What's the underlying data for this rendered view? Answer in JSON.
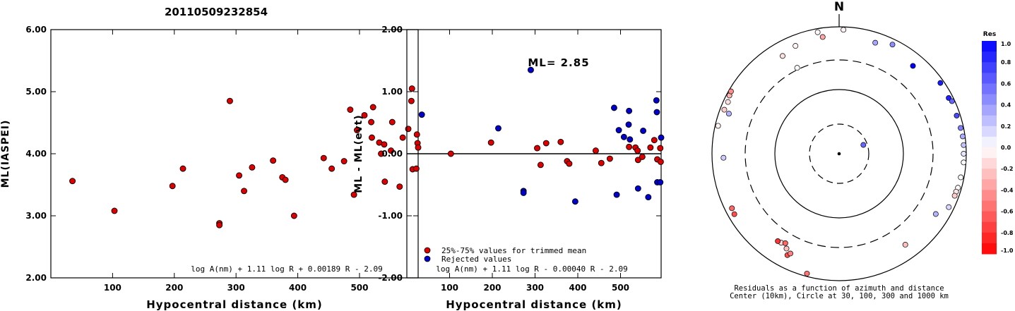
{
  "title": "20110509232854",
  "chart_data": [
    {
      "type": "scatter",
      "id": "ml",
      "xlabel": "Hypocentral distance (km)",
      "ylabel": "ML(IASPEI)",
      "xlim": [
        0,
        595
      ],
      "ylim": [
        2.0,
        6.0
      ],
      "xticks": [
        "100",
        "200",
        "300",
        "400",
        "500"
      ],
      "yticks": [
        "2.00",
        "3.00",
        "4.00",
        "5.00",
        "6.00"
      ],
      "formula": "log A(nm) + 1.11 log R + 0.00189 R - 2.09",
      "series": [
        {
          "color": "#dd0000",
          "points": [
            [
              35,
              3.56
            ],
            [
              103,
              3.08
            ],
            [
              197,
              3.48
            ],
            [
              214,
              3.76
            ],
            [
              273,
              2.88
            ],
            [
              273,
              2.85
            ],
            [
              290,
              4.85
            ],
            [
              305,
              3.65
            ],
            [
              313,
              3.4
            ],
            [
              326,
              3.78
            ],
            [
              360,
              3.89
            ],
            [
              375,
              3.62
            ],
            [
              380,
              3.58
            ],
            [
              394,
              3.0
            ],
            [
              442,
              3.93
            ],
            [
              455,
              3.76
            ],
            [
              475,
              3.88
            ],
            [
              485,
              4.71
            ],
            [
              491,
              3.34
            ],
            [
              496,
              4.38
            ],
            [
              508,
              4.62
            ],
            [
              519,
              4.51
            ],
            [
              520,
              4.26
            ],
            [
              522,
              4.75
            ],
            [
              532,
              4.18
            ],
            [
              535,
              4.0
            ],
            [
              540,
              4.15
            ],
            [
              541,
              3.55
            ],
            [
              551,
              4.05
            ],
            [
              553,
              4.51
            ],
            [
              565,
              3.47
            ],
            [
              570,
              4.26
            ],
            [
              579,
              4.4
            ],
            [
              584,
              4.85
            ],
            [
              585,
              5.05
            ],
            [
              586,
              3.75
            ],
            [
              592,
              3.76
            ],
            [
              593,
              4.31
            ],
            [
              594,
              4.17
            ],
            [
              595,
              4.1
            ]
          ]
        }
      ]
    },
    {
      "type": "scatter",
      "id": "residual",
      "xlabel": "Hypocentral distance (km)",
      "ylabel": "ML - ML(evt)",
      "xlim": [
        0,
        595
      ],
      "ylim": [
        -2.0,
        2.0
      ],
      "xticks": [
        "100",
        "200",
        "300",
        "400",
        "500"
      ],
      "yticks": [
        "-2.00",
        "-1.00",
        "0.00",
        "1.00",
        "2.00"
      ],
      "ml_label": "ML= 2.85",
      "formula": "log A(nm) + 1.11 log R - 0.00040 R - 2.09",
      "legend": [
        "25%-75% values for trimmed mean",
        "Rejected values"
      ],
      "legend_position": "bottom-left",
      "series": [
        {
          "name": "25%-75% values for trimmed mean",
          "color": "#dd0000",
          "points": [
            [
              103,
              0.0
            ],
            [
              197,
              0.18
            ],
            [
              305,
              0.09
            ],
            [
              313,
              -0.18
            ],
            [
              326,
              0.17
            ],
            [
              360,
              0.19
            ],
            [
              375,
              -0.12
            ],
            [
              380,
              -0.16
            ],
            [
              442,
              0.05
            ],
            [
              455,
              -0.15
            ],
            [
              475,
              -0.08
            ],
            [
              520,
              0.11
            ],
            [
              535,
              0.1
            ],
            [
              540,
              0.05
            ],
            [
              541,
              -0.1
            ],
            [
              551,
              -0.05
            ],
            [
              570,
              0.1
            ],
            [
              579,
              0.22
            ],
            [
              586,
              -0.09
            ],
            [
              593,
              0.09
            ],
            [
              594,
              -0.13
            ]
          ]
        },
        {
          "name": "Rejected values",
          "color": "#0000cc",
          "points": [
            [
              35,
              0.63
            ],
            [
              214,
              0.41
            ],
            [
              273,
              -0.6
            ],
            [
              273,
              -0.63
            ],
            [
              290,
              1.35
            ],
            [
              394,
              -0.77
            ],
            [
              485,
              0.74
            ],
            [
              491,
              -0.66
            ],
            [
              496,
              0.38
            ],
            [
              508,
              0.27
            ],
            [
              519,
              0.47
            ],
            [
              520,
              0.69
            ],
            [
              522,
              0.23
            ],
            [
              541,
              -0.56
            ],
            [
              553,
              0.37
            ],
            [
              565,
              -0.7
            ],
            [
              584,
              0.86
            ],
            [
              585,
              0.67
            ],
            [
              586,
              -0.46
            ],
            [
              593,
              -0.46
            ],
            [
              595,
              0.26
            ]
          ]
        }
      ]
    },
    {
      "type": "polar",
      "id": "azimuth",
      "north_label": "N",
      "caption_line1": "Residuals as a function of azimuth and distance",
      "caption_line2": "Center (10km), Circle at 30, 100, 300 and 1000 km",
      "colorbar_title": "Res",
      "colorbar_ticks": [
        "1.0",
        "0.8",
        "0.6",
        "0.4",
        "0.2",
        "0.0",
        "-0.2",
        "-0.4",
        "-0.6",
        "-0.8",
        "-1.0"
      ],
      "stations": [
        {
          "az": 2,
          "dist": 900,
          "res": -0.05
        },
        {
          "az": 350,
          "dist": 880,
          "res": -0.03
        },
        {
          "az": 352,
          "dist": 720,
          "res": -0.35
        },
        {
          "az": 338,
          "dist": 680,
          "res": -0.05
        },
        {
          "az": 330,
          "dist": 600,
          "res": -0.12
        },
        {
          "az": 334,
          "dist": 320,
          "res": 0.02
        },
        {
          "az": 26,
          "dist": 820,
          "res": 0.45
        },
        {
          "az": 18,
          "dist": 690,
          "res": 0.35
        },
        {
          "az": 40,
          "dist": 640,
          "res": 1.0
        },
        {
          "az": 70,
          "dist": 26,
          "res": 0.6
        },
        {
          "az": 55,
          "dist": 880,
          "res": 0.9
        },
        {
          "az": 63,
          "dist": 860,
          "res": 0.88
        },
        {
          "az": 65,
          "dist": 910,
          "res": 0.6
        },
        {
          "az": 72,
          "dist": 880,
          "res": 0.72
        },
        {
          "az": 78,
          "dist": 900,
          "res": 0.5
        },
        {
          "az": 82,
          "dist": 920,
          "res": 0.33
        },
        {
          "az": 86,
          "dist": 920,
          "res": 0.24
        },
        {
          "az": 90,
          "dist": 910,
          "res": 0.1
        },
        {
          "az": 94,
          "dist": 920,
          "res": 0.02
        },
        {
          "az": 101,
          "dist": 890,
          "res": -0.02
        },
        {
          "az": 106,
          "dist": 880,
          "res": -0.02
        },
        {
          "az": 108,
          "dist": 860,
          "res": -0.1
        },
        {
          "az": 110,
          "dist": 860,
          "res": -0.2
        },
        {
          "az": 116,
          "dist": 830,
          "res": 0.15
        },
        {
          "az": 122,
          "dist": 620,
          "res": 0.3
        },
        {
          "az": 144,
          "dist": 590,
          "res": -0.25
        },
        {
          "az": 195,
          "dist": 900,
          "res": -0.55
        },
        {
          "az": 207,
          "dist": 620,
          "res": -0.7
        },
        {
          "az": 206,
          "dist": 560,
          "res": -0.5
        },
        {
          "az": 209,
          "dist": 510,
          "res": -0.25
        },
        {
          "az": 213,
          "dist": 470,
          "res": -0.15
        },
        {
          "az": 215,
          "dist": 480,
          "res": -0.8
        },
        {
          "az": 211,
          "dist": 440,
          "res": -0.6
        },
        {
          "az": 240,
          "dist": 800,
          "res": -0.7
        },
        {
          "az": 243,
          "dist": 780,
          "res": -0.6
        },
        {
          "az": 268,
          "dist": 660,
          "res": 0.2
        },
        {
          "az": 283,
          "dist": 900,
          "res": -0.05
        },
        {
          "az": 290,
          "dist": 700,
          "res": 0.3
        },
        {
          "az": 291,
          "dist": 860,
          "res": -0.2
        },
        {
          "az": 295,
          "dist": 850,
          "res": -0.12
        },
        {
          "az": 298,
          "dist": 900,
          "res": -0.3
        },
        {
          "az": 300,
          "dist": 920,
          "res": -0.45
        }
      ]
    }
  ]
}
